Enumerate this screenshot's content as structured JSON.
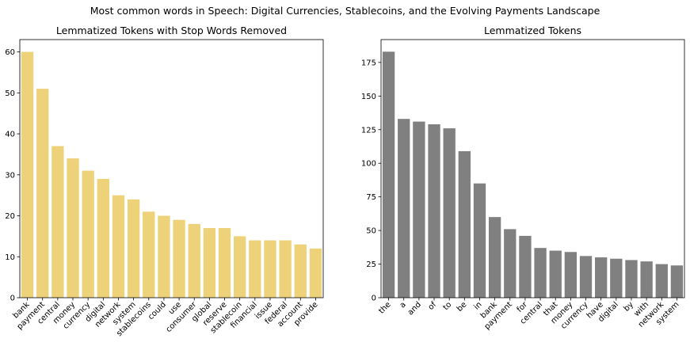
{
  "figure": {
    "suptitle": "Most common words in Speech: Digital Currencies, Stablecoins, and the Evolving Payments Landscape"
  },
  "chart_data": [
    {
      "type": "bar",
      "title": "Lemmatized Tokens with Stop Words Removed",
      "xlabel": "",
      "ylabel": "",
      "color": "#EDD27A",
      "ylim": [
        0,
        63
      ],
      "yticks": [
        0,
        10,
        20,
        30,
        40,
        50,
        60
      ],
      "categories": [
        "bank",
        "payment",
        "central",
        "money",
        "currency",
        "digital",
        "network",
        "system",
        "stablecoins",
        "could",
        "use",
        "consumer",
        "global",
        "reserve",
        "stablecoin",
        "financial",
        "issue",
        "federal",
        "account",
        "provide"
      ],
      "values": [
        60,
        51,
        37,
        34,
        31,
        29,
        25,
        24,
        21,
        20,
        19,
        18,
        17,
        17,
        15,
        14,
        14,
        14,
        13,
        12
      ]
    },
    {
      "type": "bar",
      "title": "Lemmatized Tokens",
      "xlabel": "",
      "ylabel": "",
      "color": "#808080",
      "ylim": [
        0,
        192
      ],
      "yticks": [
        0,
        25,
        50,
        75,
        100,
        125,
        150,
        175
      ],
      "categories": [
        "the",
        "a",
        "and",
        "of",
        "to",
        "be",
        "in",
        "bank",
        "payment",
        "for",
        "central",
        "that",
        "money",
        "currency",
        "have",
        "digital",
        "by",
        "with",
        "network",
        "system"
      ],
      "values": [
        183,
        133,
        131,
        129,
        126,
        109,
        85,
        60,
        51,
        46,
        37,
        35,
        34,
        31,
        30,
        29,
        28,
        27,
        25,
        24
      ]
    }
  ]
}
